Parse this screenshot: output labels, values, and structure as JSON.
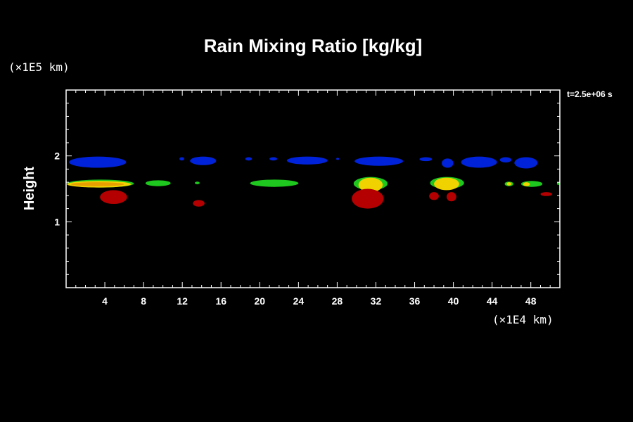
{
  "chart_data": {
    "type": "heatmap",
    "title": "Rain Mixing Ratio [kg/kg]",
    "ylabel": "Height",
    "y_unit": "(×1E5 km)",
    "x_unit": "(×1E4 km)",
    "time_label": "t=2.5e+06 s",
    "xlim": [
      0,
      51
    ],
    "ylim": [
      0,
      3
    ],
    "x_ticks": [
      4,
      8,
      12,
      16,
      20,
      24,
      28,
      32,
      36,
      40,
      44,
      48
    ],
    "y_ticks": [
      1,
      2
    ],
    "grid": false,
    "colors": {
      "blue": "#0022d8",
      "green": "#1ec81e",
      "yellow": "#f0d200",
      "orange": "#e8a000",
      "red": "#b40000"
    },
    "regions": [
      {
        "level": "blue",
        "x": [
          0.3,
          6.2
        ],
        "y": [
          1.82,
          1.99
        ]
      },
      {
        "level": "blue",
        "x": [
          11.7,
          12.2
        ],
        "y": [
          1.93,
          1.98
        ]
      },
      {
        "level": "blue",
        "x": [
          12.8,
          15.5
        ],
        "y": [
          1.86,
          1.99
        ]
      },
      {
        "level": "blue",
        "x": [
          18.5,
          19.2
        ],
        "y": [
          1.93,
          1.98
        ]
      },
      {
        "level": "blue",
        "x": [
          21.0,
          21.8
        ],
        "y": [
          1.93,
          1.98
        ]
      },
      {
        "level": "blue",
        "x": [
          22.8,
          27.0
        ],
        "y": [
          1.87,
          1.99
        ]
      },
      {
        "level": "blue",
        "x": [
          27.9,
          28.2
        ],
        "y": [
          1.94,
          1.97
        ]
      },
      {
        "level": "blue",
        "x": [
          29.8,
          34.8
        ],
        "y": [
          1.85,
          1.99
        ]
      },
      {
        "level": "blue",
        "x": [
          36.5,
          37.8
        ],
        "y": [
          1.92,
          1.98
        ]
      },
      {
        "level": "blue",
        "x": [
          38.8,
          40.0
        ],
        "y": [
          1.82,
          1.96
        ]
      },
      {
        "level": "blue",
        "x": [
          40.8,
          44.5
        ],
        "y": [
          1.82,
          1.99
        ]
      },
      {
        "level": "blue",
        "x": [
          44.8,
          46.0
        ],
        "y": [
          1.9,
          1.98
        ]
      },
      {
        "level": "blue",
        "x": [
          46.3,
          48.7
        ],
        "y": [
          1.81,
          1.98
        ]
      },
      {
        "level": "green",
        "x": [
          0.1,
          7.0
        ],
        "y": [
          1.52,
          1.64
        ]
      },
      {
        "level": "green",
        "x": [
          8.2,
          10.8
        ],
        "y": [
          1.54,
          1.63
        ]
      },
      {
        "level": "green",
        "x": [
          13.3,
          13.8
        ],
        "y": [
          1.57,
          1.61
        ]
      },
      {
        "level": "green",
        "x": [
          19.0,
          24.0
        ],
        "y": [
          1.53,
          1.64
        ]
      },
      {
        "level": "green",
        "x": [
          29.7,
          33.2
        ],
        "y": [
          1.48,
          1.68
        ]
      },
      {
        "level": "green",
        "x": [
          37.6,
          41.1
        ],
        "y": [
          1.5,
          1.68
        ]
      },
      {
        "level": "green",
        "x": [
          45.3,
          46.2
        ],
        "y": [
          1.54,
          1.61
        ]
      },
      {
        "level": "green",
        "x": [
          47.0,
          49.2
        ],
        "y": [
          1.53,
          1.62
        ]
      },
      {
        "level": "green",
        "x": [
          50.7,
          51.0
        ],
        "y": [
          1.56,
          1.6
        ]
      },
      {
        "level": "yellow",
        "x": [
          0.1,
          6.7
        ],
        "y": [
          1.52,
          1.62
        ]
      },
      {
        "level": "yellow",
        "x": [
          30.2,
          32.7
        ],
        "y": [
          1.45,
          1.67
        ]
      },
      {
        "level": "yellow",
        "x": [
          38.0,
          40.6
        ],
        "y": [
          1.48,
          1.67
        ]
      },
      {
        "level": "yellow",
        "x": [
          45.5,
          46.0
        ],
        "y": [
          1.55,
          1.6
        ]
      },
      {
        "level": "yellow",
        "x": [
          47.2,
          47.9
        ],
        "y": [
          1.54,
          1.6
        ]
      },
      {
        "level": "orange",
        "x": [
          0.5,
          6.0
        ],
        "y": [
          1.54,
          1.6
        ]
      },
      {
        "level": "red",
        "x": [
          3.5,
          6.3
        ],
        "y": [
          1.27,
          1.48
        ]
      },
      {
        "level": "red",
        "x": [
          13.1,
          14.3
        ],
        "y": [
          1.23,
          1.33
        ]
      },
      {
        "level": "red",
        "x": [
          29.5,
          32.8
        ],
        "y": [
          1.2,
          1.5
        ]
      },
      {
        "level": "red",
        "x": [
          37.5,
          38.5
        ],
        "y": [
          1.33,
          1.45
        ]
      },
      {
        "level": "red",
        "x": [
          39.3,
          40.3
        ],
        "y": [
          1.31,
          1.45
        ]
      },
      {
        "level": "red",
        "x": [
          49.0,
          50.2
        ],
        "y": [
          1.39,
          1.45
        ]
      }
    ]
  }
}
